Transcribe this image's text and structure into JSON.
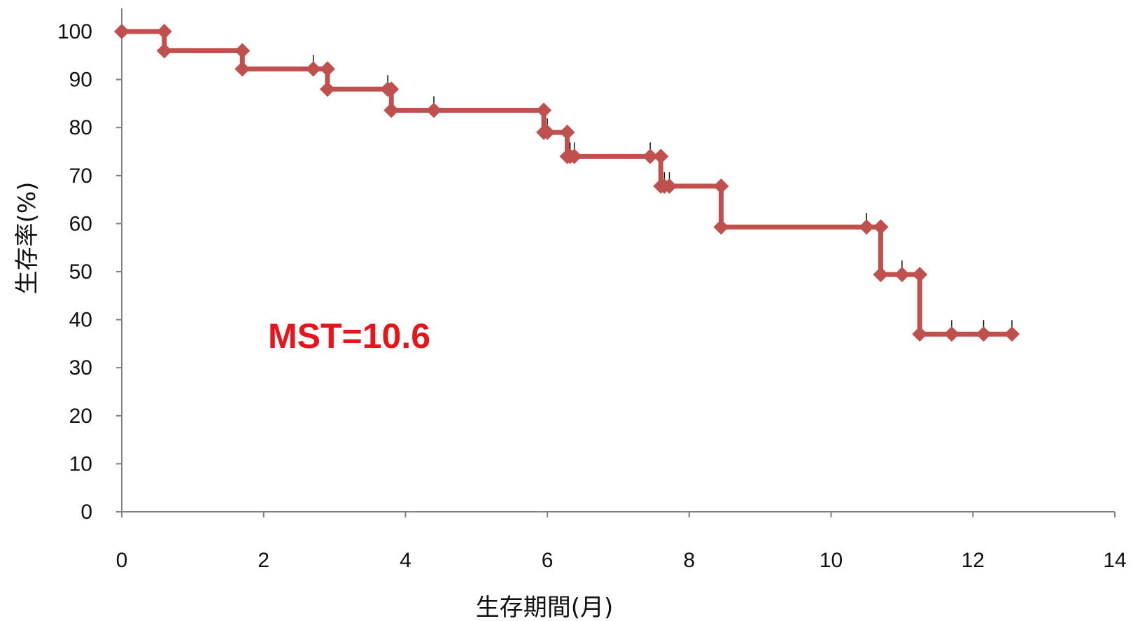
{
  "chart_data": {
    "type": "line",
    "step": true,
    "xlabel": "生存期間(月)",
    "ylabel": "生存率(%)",
    "xlim": [
      0,
      14
    ],
    "ylim": [
      0,
      100
    ],
    "xticks": [
      "0",
      "2",
      "4",
      "6",
      "8",
      "10",
      "12",
      "14"
    ],
    "yticks": [
      "0",
      "10",
      "20",
      "30",
      "40",
      "50",
      "60",
      "70",
      "80",
      "90",
      "100"
    ],
    "grid": false,
    "annotation": "MST=10.6",
    "annotation_color": "#e8141b",
    "series": [
      {
        "color": "#c0504d",
        "marker": "diamond",
        "points": [
          [
            0,
            100
          ],
          [
            0.6,
            100
          ],
          [
            0.6,
            96
          ],
          [
            1.7,
            96
          ],
          [
            1.7,
            92.2
          ],
          [
            2.7,
            92.2
          ],
          [
            2.9,
            92.2
          ],
          [
            2.9,
            88
          ],
          [
            3.75,
            88
          ],
          [
            3.8,
            88
          ],
          [
            3.8,
            83.6
          ],
          [
            4.4,
            83.6
          ],
          [
            5.95,
            83.6
          ],
          [
            5.95,
            79
          ],
          [
            6.0,
            79
          ],
          [
            6.28,
            79
          ],
          [
            6.28,
            74
          ],
          [
            6.32,
            74
          ],
          [
            6.38,
            74
          ],
          [
            7.45,
            74
          ],
          [
            7.6,
            74
          ],
          [
            7.6,
            67.8
          ],
          [
            7.65,
            67.8
          ],
          [
            7.72,
            67.8
          ],
          [
            8.45,
            67.8
          ],
          [
            8.45,
            59.3
          ],
          [
            10.5,
            59.3
          ],
          [
            10.7,
            59.3
          ],
          [
            10.7,
            49.4
          ],
          [
            11.0,
            49.4
          ],
          [
            11.25,
            49.4
          ],
          [
            11.25,
            37
          ],
          [
            11.7,
            37
          ],
          [
            12.15,
            37
          ],
          [
            12.55,
            37
          ]
        ]
      }
    ],
    "censor_ticks": [
      [
        2.7,
        92.2
      ],
      [
        3.75,
        88
      ],
      [
        4.4,
        83.6
      ],
      [
        6.0,
        79
      ],
      [
        6.32,
        74
      ],
      [
        6.38,
        74
      ],
      [
        7.45,
        74
      ],
      [
        7.65,
        67.8
      ],
      [
        7.72,
        67.8
      ],
      [
        10.5,
        59.3
      ],
      [
        11.0,
        49.4
      ],
      [
        11.7,
        37
      ],
      [
        12.15,
        37
      ],
      [
        12.55,
        37
      ]
    ]
  }
}
